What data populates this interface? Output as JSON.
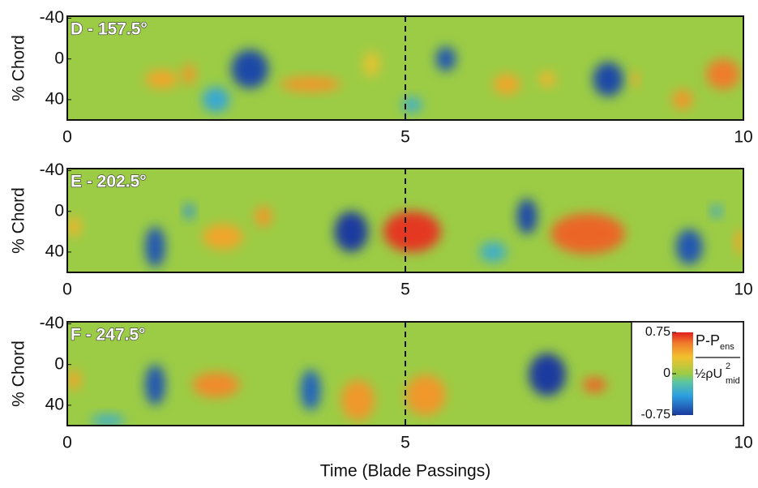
{
  "chart_data": [
    {
      "type": "heatmap",
      "title": "D - 157.5°",
      "ylabel": "% Chord",
      "xlim": [
        0,
        10
      ],
      "xticks": [
        0,
        5,
        10
      ],
      "ylim": [
        -42,
        60
      ],
      "yticks": [
        -40,
        0,
        40
      ],
      "x": [
        2.7,
        2.2,
        1.4,
        1.8,
        3.6,
        4.5,
        5.6,
        5.1,
        6.5,
        7.1,
        8.0,
        8.4,
        9.1,
        9.7
      ],
      "y": [
        10,
        40,
        20,
        15,
        25,
        5,
        0,
        45,
        25,
        20,
        20,
        20,
        40,
        15
      ],
      "values": [
        -0.7,
        -0.35,
        0.4,
        0.45,
        0.45,
        0.25,
        -0.65,
        -0.3,
        0.4,
        0.35,
        -0.7,
        0.4,
        0.45,
        0.55
      ],
      "width": [
        0.55,
        0.4,
        0.5,
        0.2,
        0.9,
        0.25,
        0.3,
        0.3,
        0.4,
        0.25,
        0.45,
        0.12,
        0.3,
        0.5
      ],
      "height": [
        38,
        25,
        18,
        20,
        15,
        25,
        24,
        15,
        20,
        15,
        34,
        15,
        20,
        30
      ]
    },
    {
      "type": "heatmap",
      "title": "E - 202.5°",
      "ylabel": "% Chord",
      "xlim": [
        0,
        10
      ],
      "xticks": [
        0,
        5,
        10
      ],
      "ylim": [
        -42,
        60
      ],
      "yticks": [
        -40,
        0,
        40
      ],
      "x": [
        1.3,
        1.8,
        2.3,
        2.9,
        4.2,
        5.1,
        6.3,
        6.8,
        7.7,
        9.2,
        9.6,
        9.95,
        0.1
      ],
      "y": [
        35,
        0,
        25,
        5,
        20,
        20,
        40,
        5,
        22,
        35,
        0,
        30,
        15
      ],
      "values": [
        -0.65,
        -0.45,
        0.4,
        0.45,
        -0.75,
        0.7,
        -0.3,
        -0.7,
        0.6,
        -0.65,
        -0.4,
        0.4,
        0.35
      ],
      "width": [
        0.3,
        0.15,
        0.6,
        0.25,
        0.5,
        0.85,
        0.4,
        0.3,
        1.1,
        0.4,
        0.15,
        0.15,
        0.2
      ],
      "height": [
        40,
        15,
        25,
        20,
        40,
        40,
        20,
        35,
        40,
        35,
        12,
        25,
        20
      ]
    },
    {
      "type": "heatmap",
      "title": "F - 247.5°",
      "ylabel": "% Chord",
      "xlabel": "Time (Blade Passings)",
      "xlim": [
        0,
        10
      ],
      "xticks": [
        0,
        5,
        10
      ],
      "ylim": [
        -42,
        60
      ],
      "yticks": [
        -40,
        0,
        40
      ],
      "x": [
        0.1,
        1.3,
        2.2,
        3.6,
        4.3,
        5.3,
        7.1,
        7.8,
        0.6
      ],
      "y": [
        15,
        20,
        20,
        25,
        35,
        30,
        10,
        20,
        55
      ],
      "values": [
        0.4,
        -0.65,
        0.5,
        -0.6,
        0.45,
        0.45,
        -0.75,
        0.6,
        -0.3
      ],
      "width": [
        0.2,
        0.3,
        0.7,
        0.3,
        0.5,
        0.6,
        0.55,
        0.35,
        0.5
      ],
      "height": [
        20,
        40,
        25,
        40,
        40,
        40,
        42,
        15,
        12
      ],
      "colorbar": {
        "clim": [
          -0.75,
          0.75
        ],
        "ticks": [
          0.75,
          0,
          -0.75
        ],
        "stops": [
          -0.75,
          -0.4,
          -0.15,
          0,
          0.3,
          0.55,
          0.75
        ],
        "colors": [
          "#1a3a9e",
          "#2e9fe0",
          "#5cc6a0",
          "#9ccc45",
          "#f2c12e",
          "#ef7d2a",
          "#e02020"
        ],
        "label": {
          "numerator": "P-P",
          "numerator_sub": "ens",
          "denominator": "½ρU",
          "denominator_sup": "2",
          "denominator_sub": "mid"
        }
      }
    }
  ]
}
